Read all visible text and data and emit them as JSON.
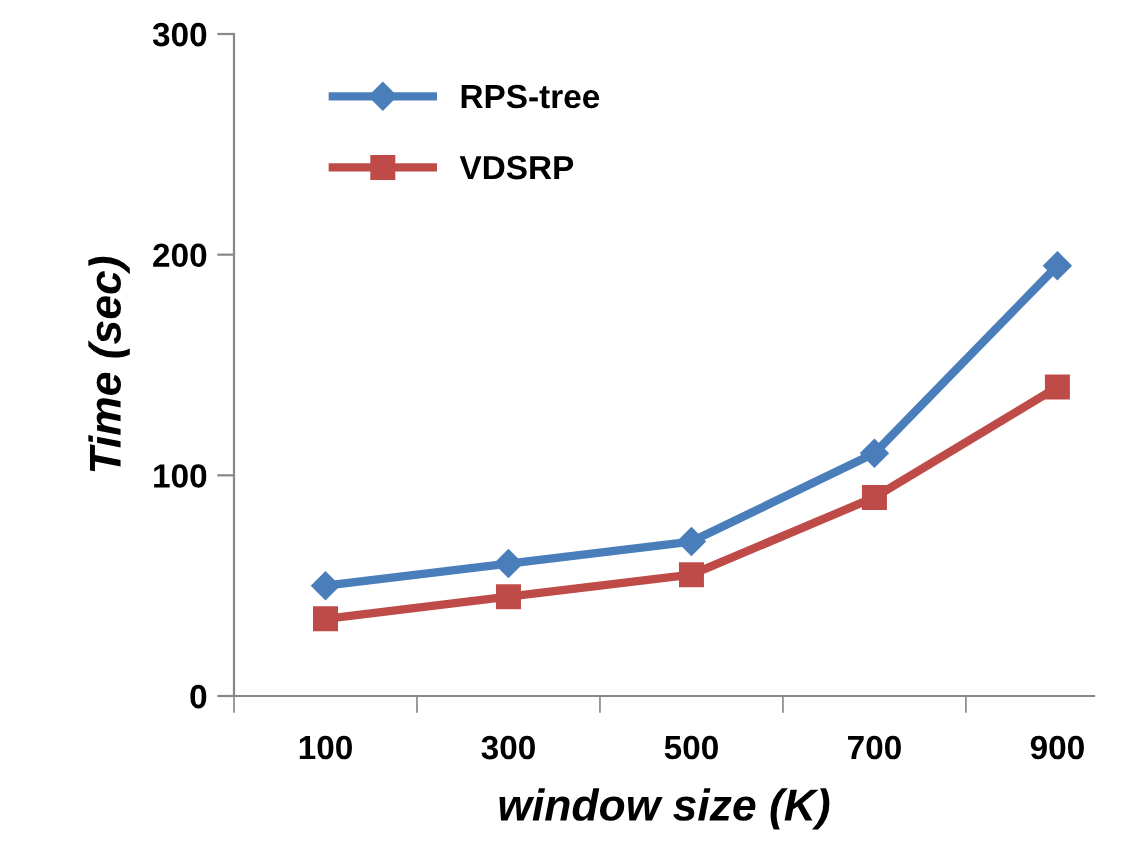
{
  "chart_data": {
    "type": "line",
    "xlabel": "window size (K)",
    "ylabel": "Time (sec)",
    "categories": [
      "100",
      "300",
      "500",
      "700",
      "900"
    ],
    "series": [
      {
        "name": "RPS-tree",
        "color": "#4a7ebb",
        "marker": "diamond",
        "values": [
          50,
          60,
          70,
          110,
          195
        ]
      },
      {
        "name": "VDSRP",
        "color": "#be4b48",
        "marker": "square",
        "values": [
          35,
          45,
          55,
          90,
          140
        ]
      }
    ],
    "ylim": [
      0,
      300
    ],
    "yticks": [
      0,
      100,
      200,
      300
    ],
    "grid": false,
    "legend": "top left",
    "line_style": "solid"
  }
}
